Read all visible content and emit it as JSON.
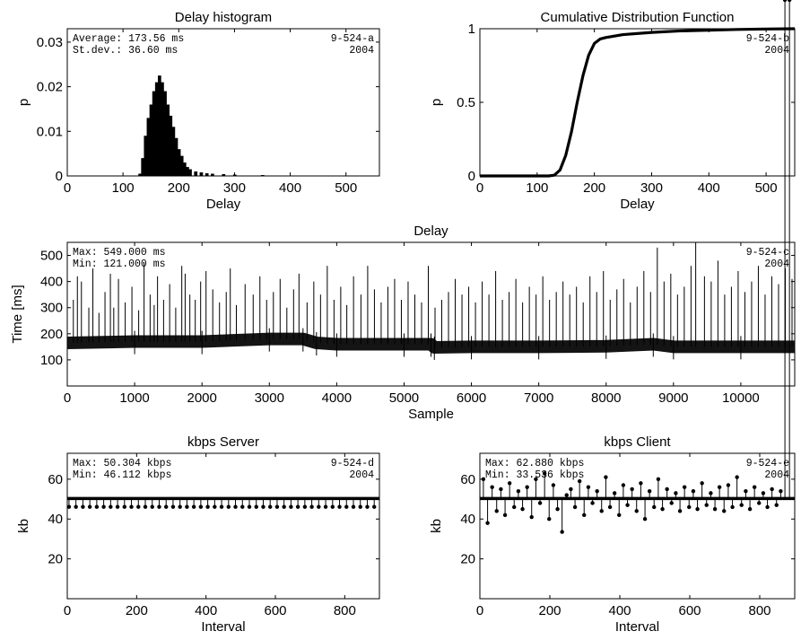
{
  "chart_data": [
    {
      "id": "hist",
      "type": "bar",
      "title": "Delay histogram",
      "xlabel": "Delay",
      "ylabel": "p",
      "xlim": [
        0,
        560
      ],
      "ylim": [
        0,
        0.033
      ],
      "xticks": [
        0,
        100,
        200,
        300,
        400,
        500
      ],
      "yticks": [
        0,
        0.01,
        0.02,
        0.03
      ],
      "ytick_labels": [
        "0",
        "0.01",
        "0.02",
        "0.03"
      ],
      "annotations_left": [
        "Average: 173.56 ms",
        "St.dev.: 36.60 ms"
      ],
      "annotations_right": [
        "9-524-a",
        "2004"
      ],
      "x": [
        120,
        130,
        135,
        140,
        145,
        150,
        155,
        160,
        165,
        170,
        175,
        180,
        185,
        190,
        195,
        200,
        205,
        210,
        215,
        220,
        230,
        240,
        250,
        260,
        280,
        300,
        350,
        400,
        450,
        500,
        550
      ],
      "values": [
        0,
        0.0005,
        0.004,
        0.009,
        0.013,
        0.016,
        0.019,
        0.021,
        0.0225,
        0.021,
        0.019,
        0.016,
        0.0135,
        0.011,
        0.0085,
        0.006,
        0.0045,
        0.003,
        0.002,
        0.0015,
        0.001,
        0.0008,
        0.0006,
        0.0005,
        0.0004,
        0.0003,
        0.0002,
        0.0001,
        0.0001,
        0.0001,
        5e-05
      ]
    },
    {
      "id": "cdf",
      "type": "line",
      "title": "Cumulative Distribution Function",
      "xlabel": "Delay",
      "ylabel": "p",
      "xlim": [
        0,
        550
      ],
      "ylim": [
        0,
        1
      ],
      "xticks": [
        0,
        100,
        200,
        300,
        400,
        500
      ],
      "yticks": [
        0,
        0.5,
        1
      ],
      "ytick_labels": [
        "0",
        "0.5",
        "1"
      ],
      "annotations_right": [
        "9-524-b",
        "2004"
      ],
      "x": [
        0,
        120,
        130,
        140,
        150,
        160,
        170,
        180,
        190,
        200,
        210,
        220,
        250,
        300,
        350,
        400,
        450,
        500,
        550
      ],
      "values": [
        0,
        0,
        0.005,
        0.04,
        0.14,
        0.3,
        0.5,
        0.68,
        0.82,
        0.9,
        0.93,
        0.94,
        0.96,
        0.975,
        0.985,
        0.99,
        0.995,
        0.998,
        1.0
      ]
    },
    {
      "id": "delay",
      "type": "line",
      "title": "Delay",
      "xlabel": "Sample",
      "ylabel": "Time [ms]",
      "xlim": [
        0,
        10800
      ],
      "ylim": [
        0,
        550
      ],
      "xticks": [
        0,
        1000,
        2000,
        3000,
        4000,
        5000,
        6000,
        7000,
        8000,
        9000,
        10000
      ],
      "yticks": [
        100,
        200,
        300,
        400,
        500
      ],
      "ytick_labels": [
        "100",
        "200",
        "300",
        "400",
        "500"
      ],
      "annotations_left": [
        "Max: 549.000 ms",
        "Min: 121.000 ms"
      ],
      "annotations_right": [
        "9-524-c",
        "2004"
      ],
      "baseline_x": [
        0,
        1000,
        2000,
        3000,
        3500,
        3700,
        4000,
        5000,
        5400,
        5450,
        6000,
        7000,
        8000,
        8700,
        9000,
        10000,
        10800
      ],
      "baseline_values": [
        165,
        170,
        170,
        180,
        180,
        165,
        160,
        160,
        160,
        148,
        150,
        150,
        152,
        160,
        150,
        150,
        150
      ],
      "spikes_x": [
        90,
        150,
        210,
        320,
        380,
        470,
        560,
        640,
        690,
        760,
        860,
        960,
        1060,
        1140,
        1230,
        1290,
        1340,
        1430,
        1520,
        1610,
        1700,
        1750,
        1820,
        1900,
        1980,
        2060,
        2160,
        2260,
        2360,
        2420,
        2510,
        2640,
        2760,
        2860,
        2960,
        3060,
        3160,
        3260,
        3360,
        3440,
        3560,
        3660,
        3760,
        3860,
        3960,
        4060,
        4150,
        4250,
        4360,
        4460,
        4560,
        4660,
        4760,
        4860,
        4960,
        5060,
        5160,
        5260,
        5360,
        5460,
        5560,
        5660,
        5760,
        5860,
        5960,
        6060,
        6160,
        6260,
        6360,
        6460,
        6560,
        6660,
        6760,
        6860,
        6960,
        7060,
        7160,
        7260,
        7360,
        7460,
        7560,
        7660,
        7760,
        7860,
        7960,
        8060,
        8160,
        8260,
        8360,
        8460,
        8560,
        8660,
        8760,
        8860,
        8960,
        9060,
        9160,
        9260,
        9330,
        9460,
        9560,
        9660,
        9760,
        9860,
        9960,
        10060,
        10160,
        10260,
        10360,
        10460,
        10560,
        10660,
        10760
      ],
      "spikes_values": [
        330,
        420,
        400,
        300,
        450,
        280,
        360,
        430,
        300,
        410,
        320,
        380,
        290,
        470,
        350,
        310,
        420,
        330,
        390,
        300,
        460,
        430,
        350,
        330,
        400,
        440,
        370,
        320,
        360,
        450,
        310,
        390,
        350,
        420,
        330,
        360,
        410,
        300,
        370,
        430,
        320,
        400,
        350,
        460,
        330,
        380,
        310,
        420,
        350,
        460,
        370,
        320,
        380,
        410,
        330,
        400,
        350,
        320,
        460,
        300,
        330,
        360,
        410,
        350,
        380,
        320,
        400,
        350,
        440,
        330,
        360,
        410,
        320,
        380,
        350,
        420,
        330,
        360,
        400,
        350,
        380,
        320,
        420,
        360,
        440,
        330,
        370,
        410,
        320,
        380,
        440,
        360,
        530,
        400,
        430,
        350,
        380,
        460,
        549,
        420,
        400,
        480,
        350,
        380,
        440,
        360,
        400,
        460,
        350,
        420,
        390,
        450,
        410
      ]
    },
    {
      "id": "kbps-server",
      "type": "scatter",
      "title": "kbps Server",
      "xlabel": "Interval",
      "ylabel": "kb",
      "xlim": [
        0,
        900
      ],
      "ylim": [
        0,
        73
      ],
      "xticks": [
        0,
        200,
        400,
        600,
        800
      ],
      "yticks": [
        20,
        40,
        60
      ],
      "ytick_labels": [
        "20",
        "40",
        "60"
      ],
      "annotations_left": [
        "Max: 50.304 kbps",
        "Min: 46.112 kbps"
      ],
      "annotations_right": [
        "9-524-d",
        "2004"
      ],
      "baseline": 50.304,
      "stem_x": [
        5,
        25,
        45,
        65,
        85,
        105,
        125,
        145,
        165,
        185,
        205,
        225,
        245,
        265,
        285,
        305,
        325,
        345,
        365,
        385,
        405,
        425,
        445,
        465,
        485,
        505,
        525,
        545,
        565,
        585,
        605,
        625,
        645,
        665,
        685,
        705,
        725,
        745,
        765,
        785,
        805,
        825,
        845,
        865,
        885
      ],
      "stem_values": [
        46.112,
        46.112,
        46.112,
        46.112,
        46.112,
        46.112,
        46.112,
        46.112,
        46.112,
        46.112,
        46.112,
        46.112,
        46.112,
        46.112,
        46.112,
        46.112,
        46.112,
        46.112,
        46.112,
        46.112,
        46.112,
        46.112,
        46.112,
        46.112,
        46.112,
        46.112,
        46.112,
        46.112,
        46.112,
        46.112,
        46.112,
        46.112,
        46.112,
        46.112,
        46.112,
        46.112,
        46.112,
        46.112,
        46.112,
        46.112,
        46.112,
        46.112,
        46.112,
        46.112,
        46.112
      ]
    },
    {
      "id": "kbps-client",
      "type": "scatter",
      "title": "kbps Client",
      "xlabel": "Interval",
      "ylabel": "kb",
      "xlim": [
        0,
        900
      ],
      "ylim": [
        0,
        73
      ],
      "xticks": [
        0,
        200,
        400,
        600,
        800
      ],
      "yticks": [
        20,
        40,
        60
      ],
      "ytick_labels": [
        "20",
        "40",
        "60"
      ],
      "annotations_left": [
        "Max: 62.880 kbps",
        "Min: 33.536 kbps"
      ],
      "annotations_right": [
        "9-524-e",
        "2004"
      ],
      "baseline": 50.3,
      "stem_x": [
        10,
        22,
        35,
        48,
        60,
        72,
        85,
        98,
        110,
        122,
        135,
        148,
        160,
        172,
        185,
        198,
        210,
        222,
        235,
        248,
        260,
        272,
        285,
        298,
        310,
        322,
        335,
        348,
        360,
        372,
        385,
        398,
        410,
        422,
        435,
        448,
        460,
        472,
        485,
        498,
        510,
        522,
        535,
        548,
        560,
        572,
        585,
        598,
        610,
        622,
        635,
        648,
        660,
        672,
        685,
        698,
        710,
        722,
        735,
        748,
        760,
        772,
        785,
        798,
        810,
        822,
        835,
        848,
        860,
        872,
        885
      ],
      "stem_values": [
        60,
        38,
        56,
        44,
        55,
        42,
        58,
        46,
        54,
        45,
        56,
        41,
        60,
        48,
        62.88,
        40,
        57,
        45,
        33.536,
        52,
        55,
        46,
        59,
        42,
        56,
        48,
        54,
        44,
        61,
        46,
        53,
        42,
        57,
        47,
        55,
        44,
        58,
        40,
        54,
        46,
        60,
        45,
        55,
        48,
        53,
        44,
        56,
        46,
        54,
        45,
        58,
        47,
        53,
        45,
        56,
        44,
        57,
        46,
        61,
        47,
        54,
        45,
        56,
        48,
        53,
        46,
        55,
        47,
        54
      ]
    }
  ]
}
